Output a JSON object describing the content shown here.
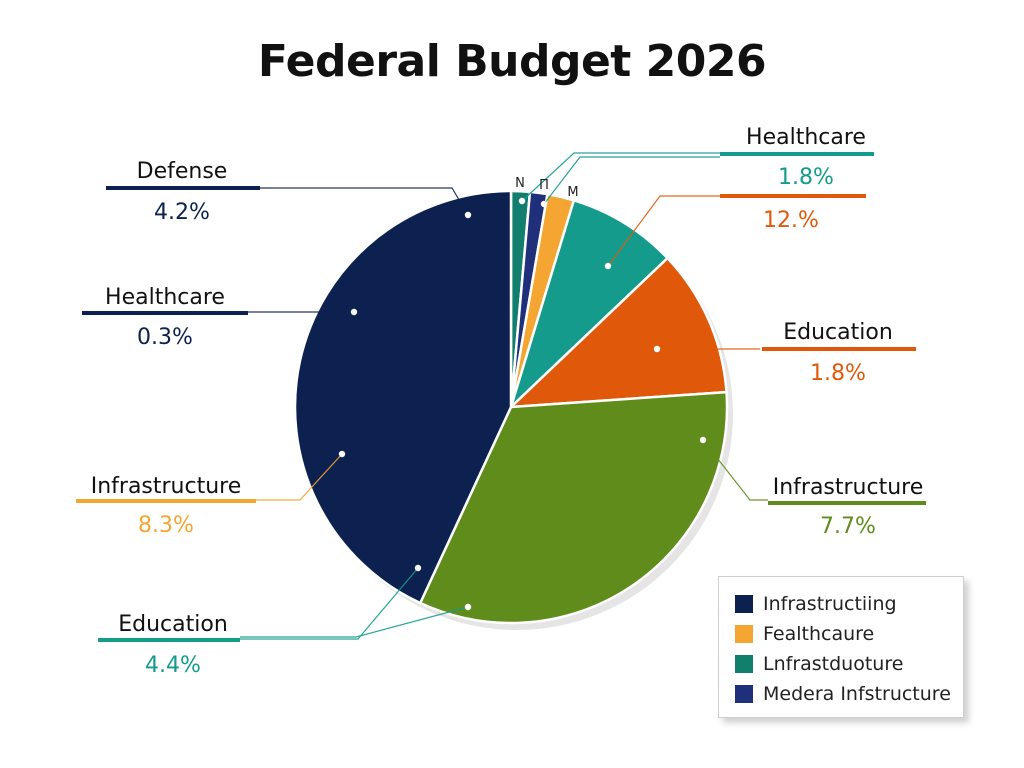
{
  "chart_data": {
    "type": "pie",
    "title": "Federal Budget 2026",
    "slices": [
      {
        "short_label": "N",
        "value": 1.4,
        "color": "#127e6e"
      },
      {
        "short_label": "Π",
        "value": 1.3,
        "color": "#1f2f79"
      },
      {
        "short_label": "M",
        "value": 2.0,
        "color": "#f4a532"
      },
      {
        "short_label": "",
        "value": 8.2,
        "color": "#149b8c"
      },
      {
        "short_label": "",
        "value": 11.0,
        "color": "#e0590a"
      },
      {
        "short_label": "",
        "value": 33.0,
        "color": "#5f8c1b"
      },
      {
        "short_label": "",
        "value": 43.1,
        "color": "#0c2150"
      }
    ],
    "callouts": [
      {
        "label": "Defense",
        "value": "4.2%",
        "label_color": "#111111",
        "value_color": "#0c2150",
        "line_color": "#0c2150"
      },
      {
        "label": "Healthcare",
        "value": "0.3%",
        "label_color": "#111111",
        "value_color": "#0c2150",
        "line_color": "#0c2150"
      },
      {
        "label": "Infrastructure",
        "value": "8.3%",
        "label_color": "#111111",
        "value_color": "#f4a532",
        "line_color": "#f4a532"
      },
      {
        "label": "Education",
        "value": "4.4%",
        "label_color": "#111111",
        "value_color": "#149b8c",
        "line_color": "#149b8c"
      },
      {
        "label": "Healthcare",
        "value": "1.8%",
        "label_color": "#111111",
        "value_color": "#149b8c",
        "line_color": "#149b8c"
      },
      {
        "label": "",
        "value": "12.%",
        "label_color": "#111111",
        "value_color": "#e0590a",
        "line_color": "#e0590a"
      },
      {
        "label": "Education",
        "value": "1.8%",
        "label_color": "#111111",
        "value_color": "#e0590a",
        "line_color": "#e0590a"
      },
      {
        "label": "Infrastructure",
        "value": "7.7%",
        "label_color": "#111111",
        "value_color": "#5f8c1b",
        "line_color": "#5f8c1b"
      }
    ],
    "legend": {
      "position": "bottom-right",
      "items": [
        {
          "label": "Infrastructiing",
          "color": "#0c2150"
        },
        {
          "label": "Fealthcaure",
          "color": "#f4a532"
        },
        {
          "label": "Lnfrastduoture",
          "color": "#127e6e"
        },
        {
          "label": "Medera Infstructure",
          "color": "#1f2f79"
        }
      ]
    }
  }
}
